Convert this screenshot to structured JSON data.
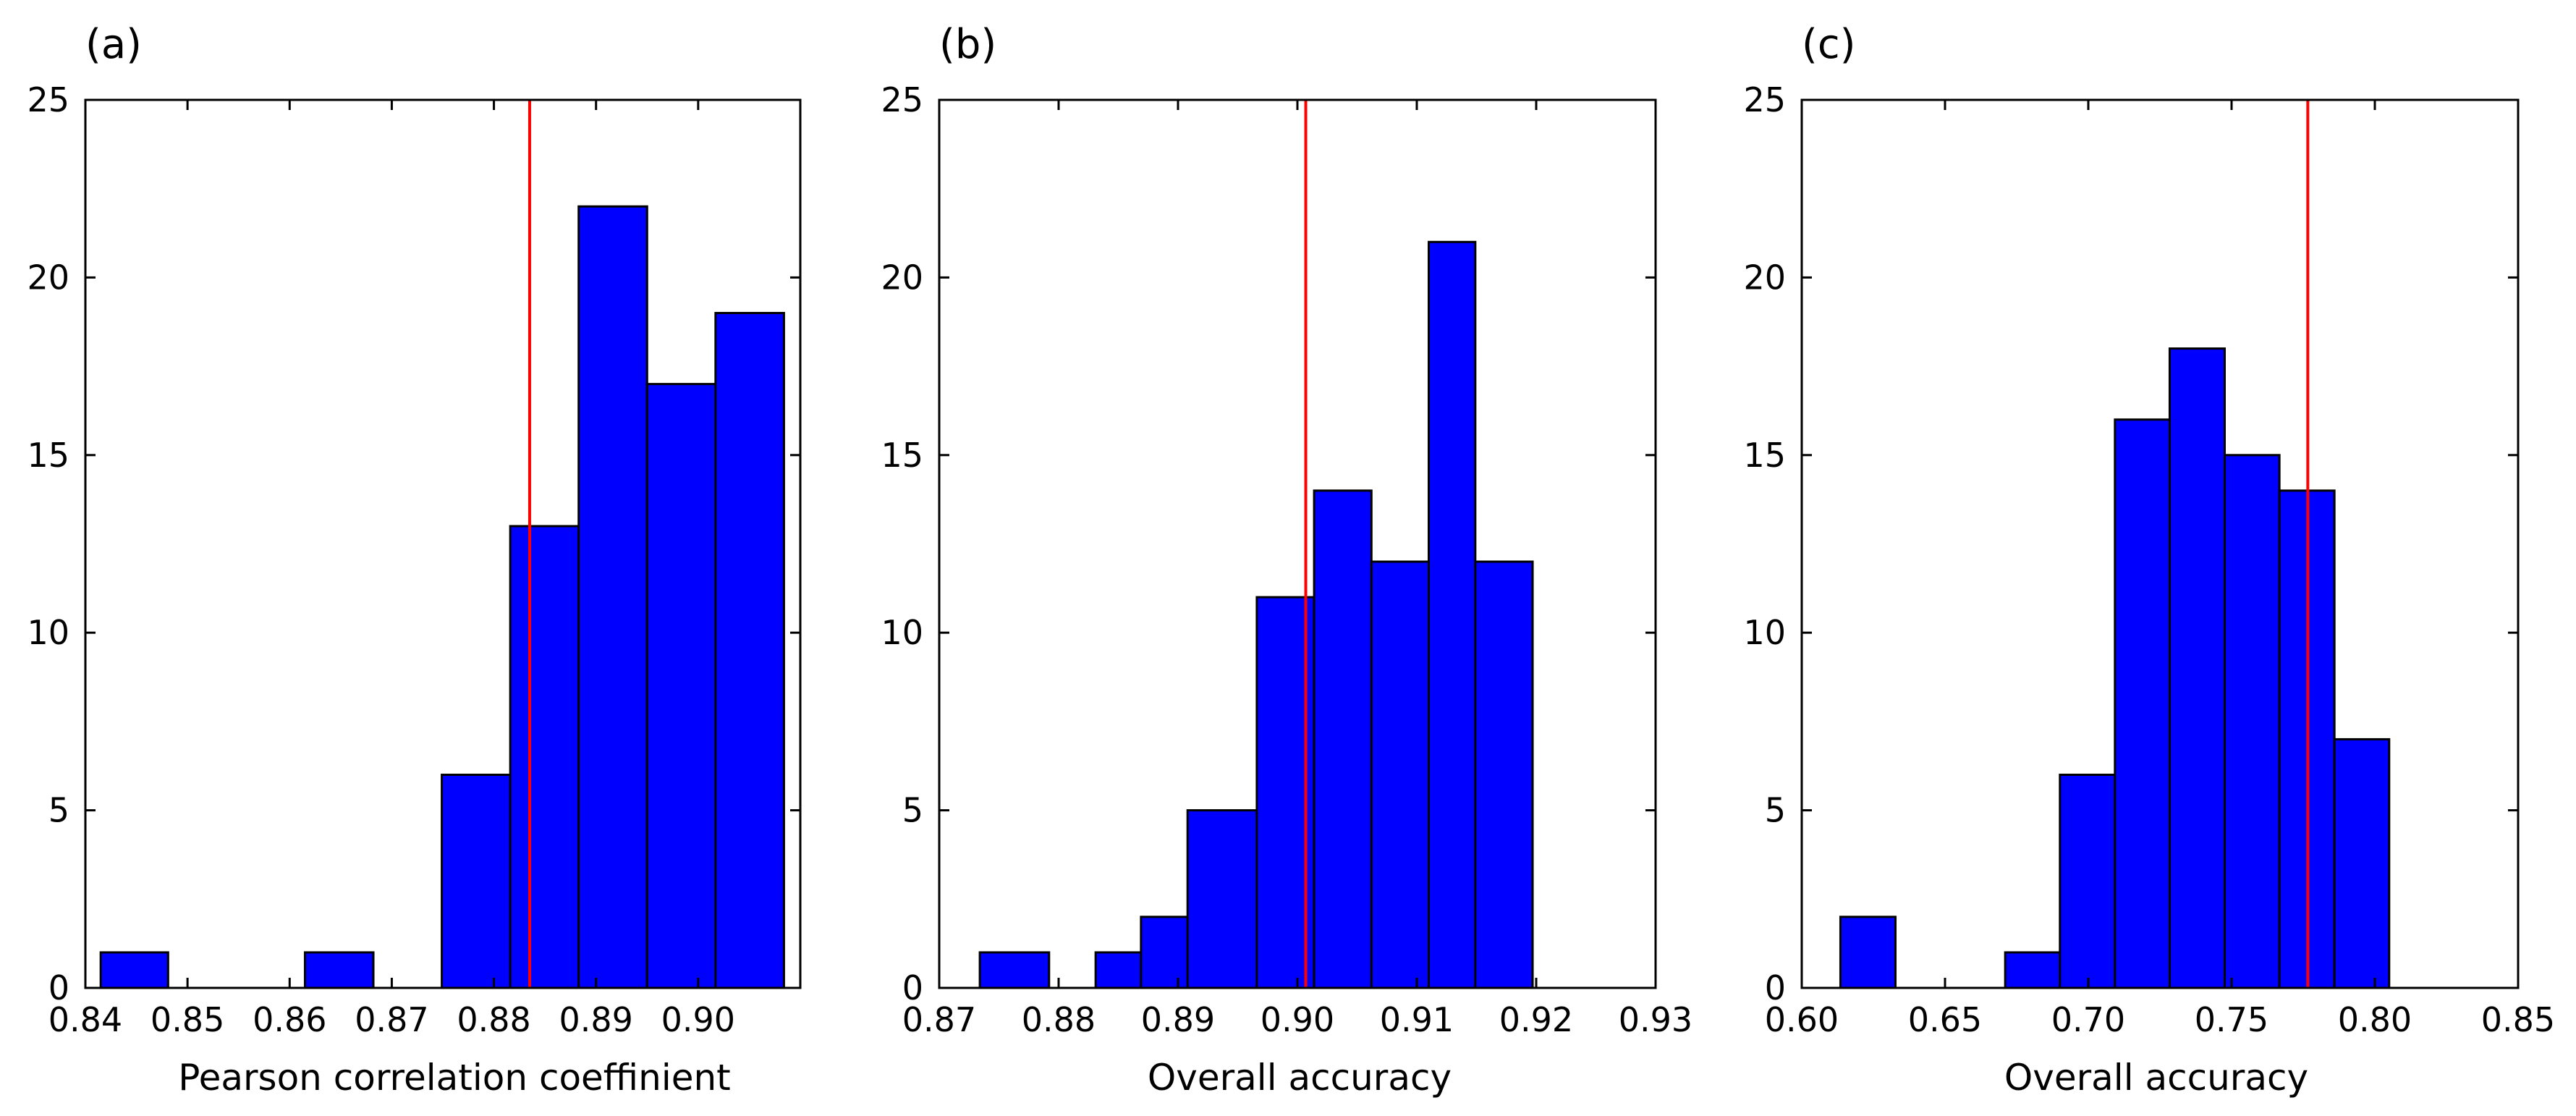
{
  "figure": {
    "layout": "three histogram panels side by side"
  },
  "chart_data": [
    {
      "type": "histogram",
      "panel_label": "(a)",
      "xlabel": "Pearson correlation coeffinient",
      "ylabel": "",
      "xlim": [
        0.84,
        0.91
      ],
      "ylim": [
        0,
        25
      ],
      "xticks": [
        0.84,
        0.85,
        0.86,
        0.87,
        0.88,
        0.89,
        0.9
      ],
      "xtick_labels": [
        "0.84",
        "0.85",
        "0.86",
        "0.87",
        "0.88",
        "0.89",
        "0.90"
      ],
      "yticks": [
        0,
        5,
        10,
        15,
        20,
        25
      ],
      "ytick_labels": [
        "0",
        "5",
        "10",
        "15",
        "20",
        "25"
      ],
      "bins": [
        {
          "x0": 0.8415,
          "x1": 0.8481,
          "count": 1
        },
        {
          "x0": 0.8481,
          "x1": 0.8548,
          "count": 0
        },
        {
          "x0": 0.8548,
          "x1": 0.8615,
          "count": 0
        },
        {
          "x0": 0.8615,
          "x1": 0.8682,
          "count": 1
        },
        {
          "x0": 0.8682,
          "x1": 0.8749,
          "count": 0
        },
        {
          "x0": 0.8749,
          "x1": 0.8816,
          "count": 6
        },
        {
          "x0": 0.8816,
          "x1": 0.8883,
          "count": 13
        },
        {
          "x0": 0.8883,
          "x1": 0.895,
          "count": 22
        },
        {
          "x0": 0.895,
          "x1": 0.9017,
          "count": 17
        },
        {
          "x0": 0.9017,
          "x1": 0.9084,
          "count": 19
        }
      ],
      "bar_color": "#0000ff",
      "reference_line": {
        "x": 0.8835,
        "color": "#ff0000"
      }
    },
    {
      "type": "histogram",
      "panel_label": "(b)",
      "xlabel": "Overall accuracy",
      "ylabel": "",
      "xlim": [
        0.87,
        0.93
      ],
      "ylim": [
        0,
        25
      ],
      "xticks": [
        0.87,
        0.88,
        0.89,
        0.9,
        0.91,
        0.92,
        0.93
      ],
      "xtick_labels": [
        "0.87",
        "0.88",
        "0.89",
        "0.90",
        "0.91",
        "0.92",
        "0.93"
      ],
      "yticks": [
        0,
        5,
        10,
        15,
        20,
        25
      ],
      "ytick_labels": [
        "0",
        "5",
        "10",
        "15",
        "20",
        "25"
      ],
      "bins": [
        {
          "x0": 0.8734,
          "x1": 0.8792,
          "count": 1
        },
        {
          "x0": 0.8792,
          "x1": 0.8831,
          "count": 0
        },
        {
          "x0": 0.8831,
          "x1": 0.8869,
          "count": 1
        },
        {
          "x0": 0.8869,
          "x1": 0.8908,
          "count": 2
        },
        {
          "x0": 0.8908,
          "x1": 0.8966,
          "count": 5
        },
        {
          "x0": 0.8966,
          "x1": 0.9014,
          "count": 11
        },
        {
          "x0": 0.9014,
          "x1": 0.9062,
          "count": 14
        },
        {
          "x0": 0.9062,
          "x1": 0.911,
          "count": 12
        },
        {
          "x0": 0.911,
          "x1": 0.9149,
          "count": 21
        },
        {
          "x0": 0.9149,
          "x1": 0.9197,
          "count": 12
        }
      ],
      "bar_color": "#0000ff",
      "reference_line": {
        "x": 0.9007,
        "color": "#ff0000"
      }
    },
    {
      "type": "histogram",
      "panel_label": "(c)",
      "xlabel": "Overall accuracy",
      "ylabel": "",
      "xlim": [
        0.6,
        0.85
      ],
      "ylim": [
        0,
        25
      ],
      "xticks": [
        0.6,
        0.65,
        0.7,
        0.75,
        0.8,
        0.85
      ],
      "xtick_labels": [
        "0.60",
        "0.65",
        "0.70",
        "0.75",
        "0.80",
        "0.85"
      ],
      "yticks": [
        0,
        5,
        10,
        15,
        20,
        25
      ],
      "ytick_labels": [
        "0",
        "5",
        "10",
        "15",
        "20",
        "25"
      ],
      "bins": [
        {
          "x0": 0.6135,
          "x1": 0.6327,
          "count": 2
        },
        {
          "x0": 0.6327,
          "x1": 0.6519,
          "count": 0
        },
        {
          "x0": 0.6519,
          "x1": 0.671,
          "count": 0
        },
        {
          "x0": 0.671,
          "x1": 0.6901,
          "count": 1
        },
        {
          "x0": 0.6901,
          "x1": 0.7093,
          "count": 6
        },
        {
          "x0": 0.7093,
          "x1": 0.7284,
          "count": 16
        },
        {
          "x0": 0.7284,
          "x1": 0.7476,
          "count": 18
        },
        {
          "x0": 0.7476,
          "x1": 0.7667,
          "count": 15
        },
        {
          "x0": 0.7667,
          "x1": 0.7859,
          "count": 14
        },
        {
          "x0": 0.7859,
          "x1": 0.805,
          "count": 7
        }
      ],
      "bar_color": "#0000ff",
      "reference_line": {
        "x": 0.7766,
        "color": "#ff0000"
      }
    }
  ]
}
